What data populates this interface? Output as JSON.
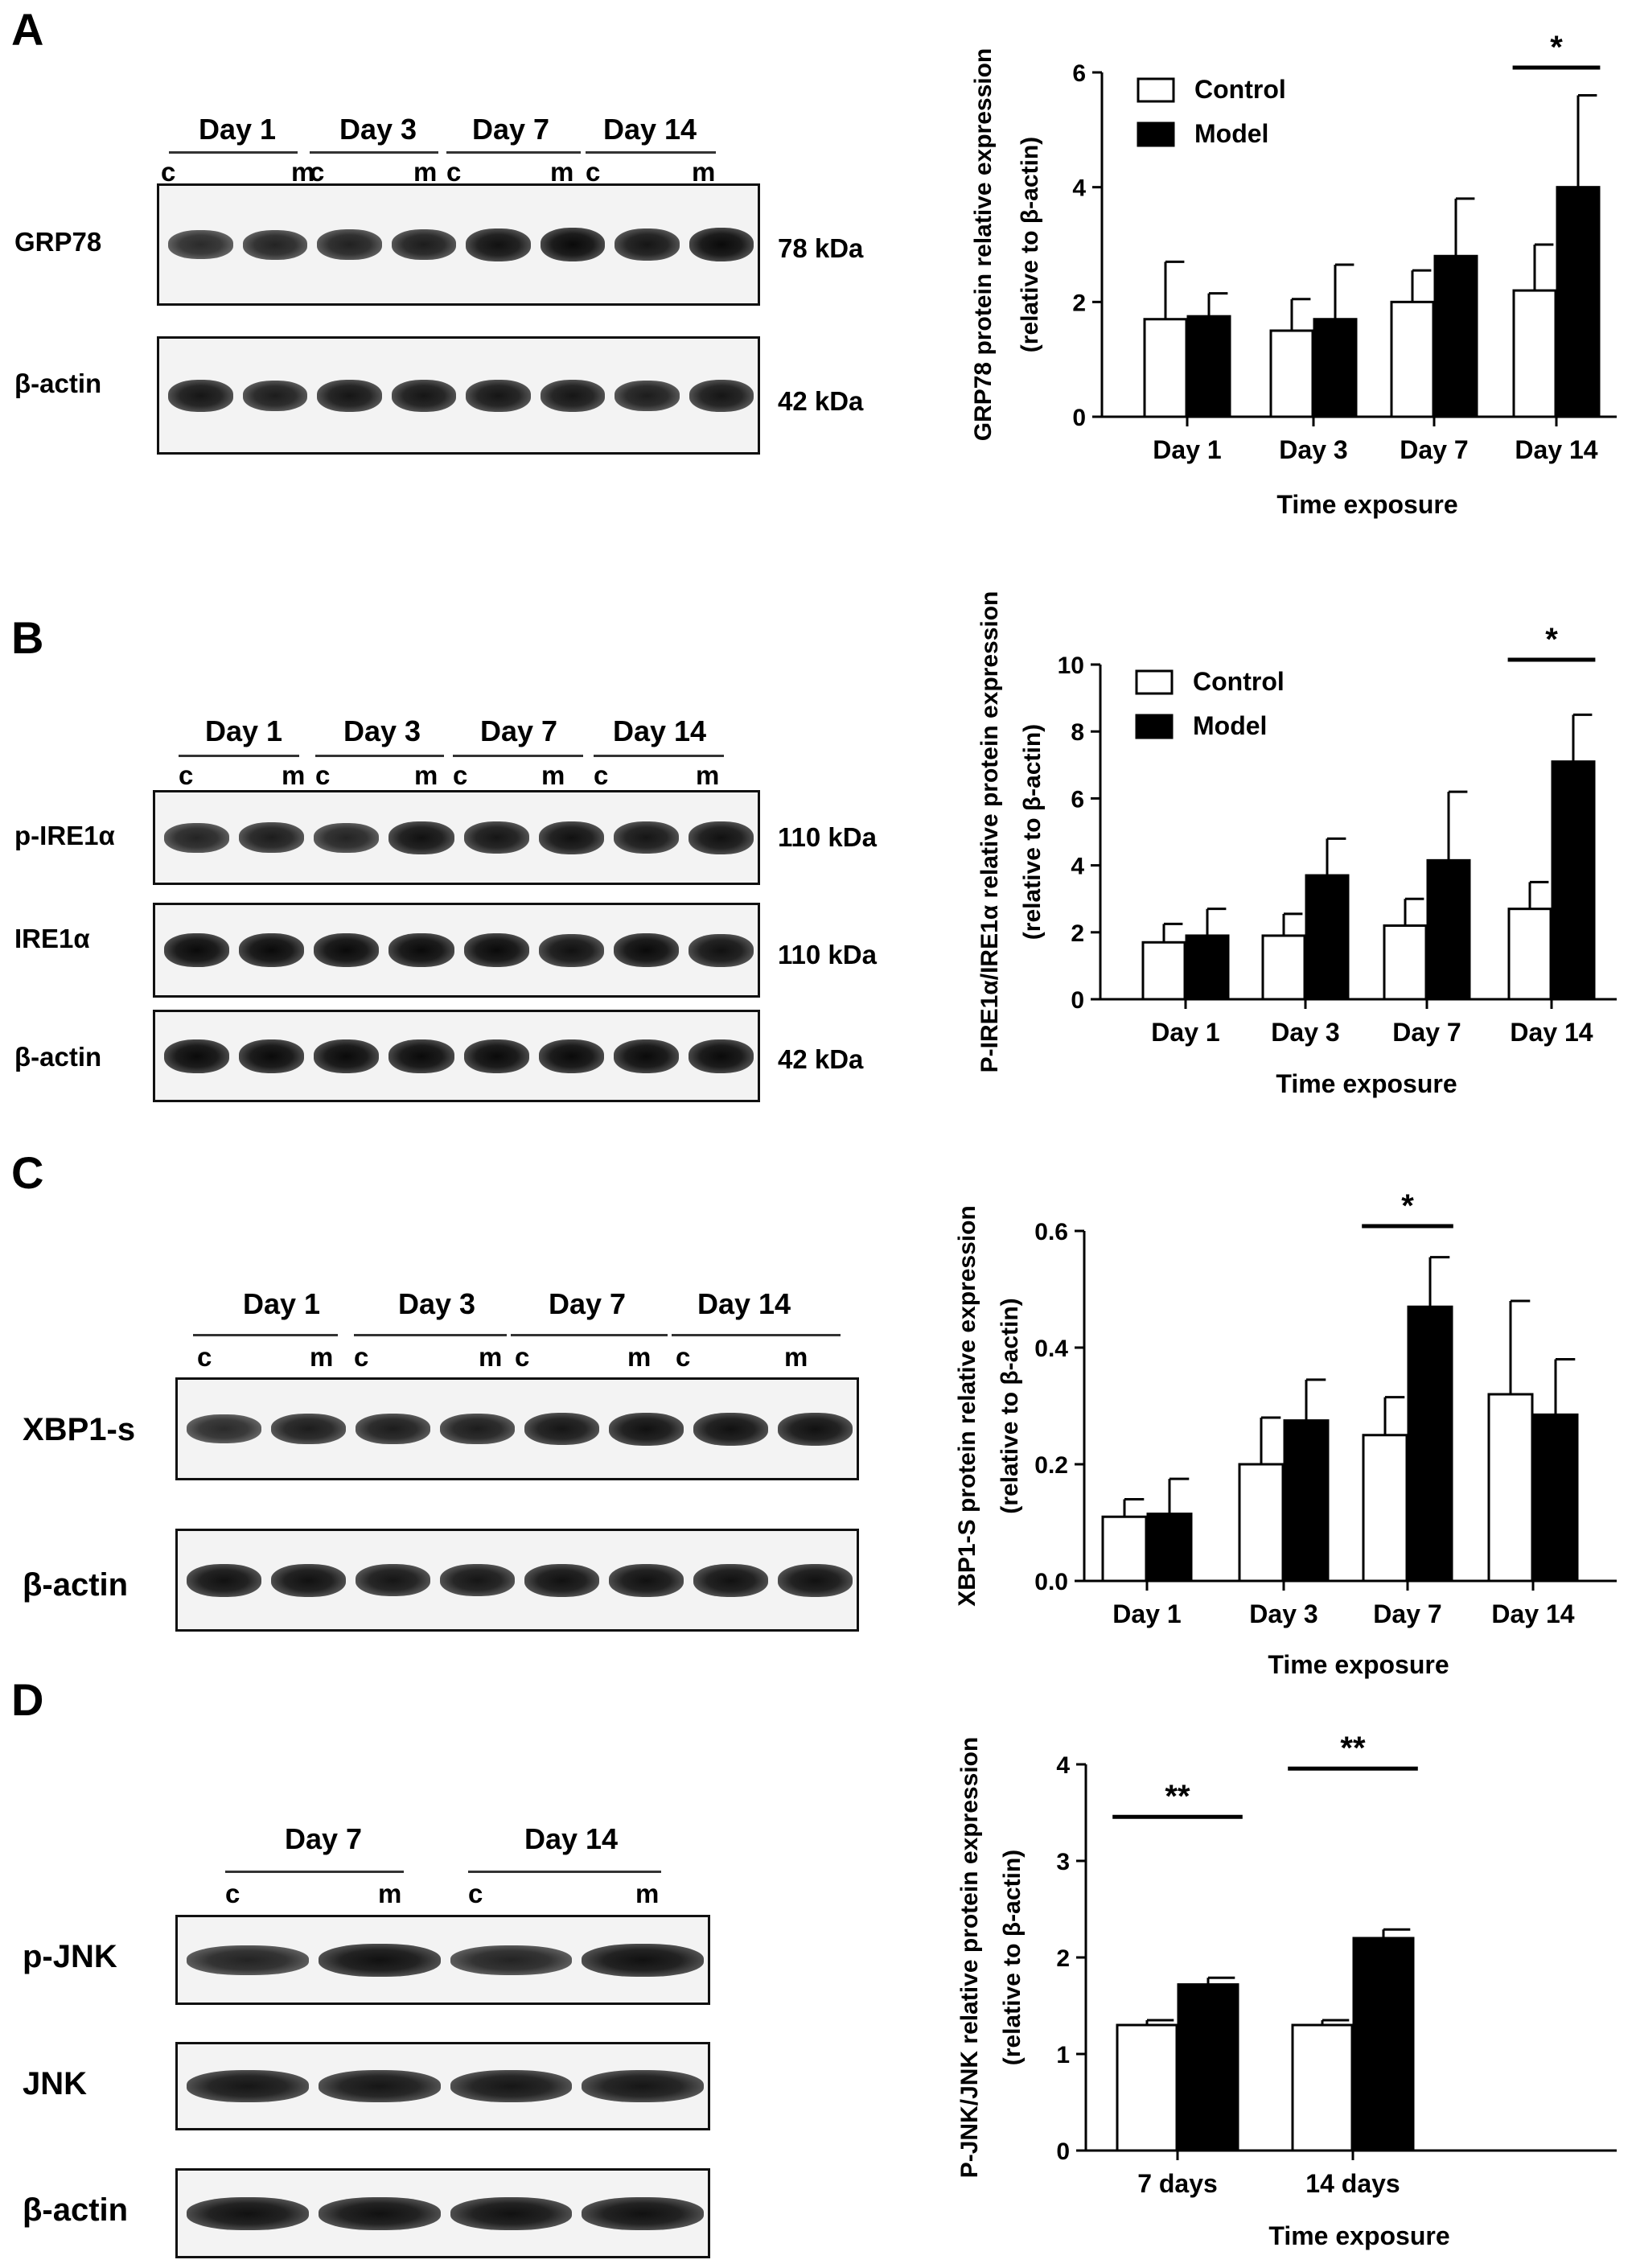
{
  "panels": [
    {
      "letter": "A",
      "days": [
        "Day 1",
        "Day 3",
        "Day 7",
        "Day 14"
      ],
      "group_c": "c",
      "group_m": "m",
      "blots": [
        {
          "label": "GRP78",
          "kda": "78 kDa",
          "intensity": [
            0.75,
            0.8,
            0.82,
            0.85,
            0.95,
            1.0,
            0.9,
            1.0
          ]
        },
        {
          "label": "β-actin",
          "kda": "42 kDa",
          "intensity": [
            0.9,
            0.85,
            0.9,
            0.9,
            0.9,
            0.9,
            0.85,
            0.9
          ]
        }
      ]
    },
    {
      "letter": "B",
      "days": [
        "Day 1",
        "Day 3",
        "Day 7",
        "Day 14"
      ],
      "group_c": "c",
      "group_m": "m",
      "blots": [
        {
          "label": "p-IRE1α",
          "kda": "110 kDa",
          "intensity": [
            0.8,
            0.85,
            0.8,
            0.95,
            0.9,
            0.95,
            0.9,
            0.95
          ]
        },
        {
          "label": "IRE1α",
          "kda": "110 kDa",
          "intensity": [
            1.0,
            1.0,
            1.0,
            1.0,
            1.0,
            0.95,
            1.0,
            0.95
          ]
        },
        {
          "label": "β-actin",
          "kda": "42 kDa",
          "intensity": [
            1.0,
            1.0,
            1.0,
            1.0,
            1.0,
            1.0,
            1.0,
            1.0
          ]
        }
      ]
    },
    {
      "letter": "C",
      "days": [
        "Day 1",
        "Day 3",
        "Day 7",
        "Day 14"
      ],
      "group_c": "c",
      "group_m": "m",
      "blots": [
        {
          "label": "XBP1-s",
          "kda": "",
          "intensity": [
            0.75,
            0.85,
            0.85,
            0.85,
            0.9,
            0.95,
            0.95,
            0.95
          ]
        },
        {
          "label": "β-actin",
          "kda": "",
          "intensity": [
            0.95,
            0.95,
            0.9,
            0.9,
            0.95,
            0.95,
            0.95,
            0.95
          ]
        }
      ]
    },
    {
      "letter": "D",
      "days": [
        "Day 7",
        "Day 14"
      ],
      "group_c": "c",
      "group_m": "m",
      "blots": [
        {
          "label": "p-JNK",
          "kda": "",
          "intensity": [
            0.8,
            0.95,
            0.8,
            0.95
          ]
        },
        {
          "label": "JNK",
          "kda": "",
          "intensity": [
            0.9,
            0.9,
            0.9,
            0.9
          ]
        },
        {
          "label": "β-actin",
          "kda": "",
          "intensity": [
            0.95,
            0.95,
            0.95,
            0.95
          ]
        }
      ]
    }
  ],
  "chart_data": [
    {
      "type": "bar",
      "categories": [
        "Day 1",
        "Day 3",
        "Day 7",
        "Day 14"
      ],
      "series": [
        {
          "name": "Control",
          "color": "#ffffff",
          "values": [
            1.7,
            1.5,
            2.0,
            2.2
          ],
          "errors": [
            1.0,
            0.55,
            0.55,
            0.8
          ]
        },
        {
          "name": "Model",
          "color": "#000000",
          "values": [
            1.75,
            1.7,
            2.8,
            4.0
          ],
          "errors": [
            0.4,
            0.95,
            1.0,
            1.6
          ]
        }
      ],
      "ylabel": "GRP78 protein relative expression (relative to β-actin)",
      "ylabel_lines": [
        "GRP78 protein relative expression",
        "(relative to β-actin)"
      ],
      "xlabel": "Time exposure",
      "ylim": [
        0,
        6
      ],
      "yticks": [
        "0",
        "2",
        "4",
        "6"
      ],
      "legend": "top-left",
      "significance": [
        {
          "category": "Day 14",
          "label": "*"
        }
      ]
    },
    {
      "type": "bar",
      "categories": [
        "Day 1",
        "Day 3",
        "Day 7",
        "Day 14"
      ],
      "series": [
        {
          "name": "Control",
          "color": "#ffffff",
          "values": [
            1.7,
            1.9,
            2.2,
            2.7
          ],
          "errors": [
            0.55,
            0.65,
            0.8,
            0.8
          ]
        },
        {
          "name": "Model",
          "color": "#000000",
          "values": [
            1.9,
            3.7,
            4.15,
            7.1
          ],
          "errors": [
            0.8,
            1.1,
            2.05,
            1.4
          ]
        }
      ],
      "ylabel": "P-IRE1α/IRE1α relative protein expression (relative to β-actin)",
      "ylabel_lines": [
        "P-IRE1α/IRE1α relative protein expression",
        "(relative to β-actin)"
      ],
      "xlabel": "Time exposure",
      "ylim": [
        0,
        10
      ],
      "yticks": [
        "0",
        "2",
        "4",
        "6",
        "8",
        "10"
      ],
      "legend": "top-left",
      "significance": [
        {
          "category": "Day 14",
          "label": "*"
        }
      ]
    },
    {
      "type": "bar",
      "categories": [
        "Day 1",
        "Day 3",
        "Day 7",
        "Day 14"
      ],
      "series": [
        {
          "name": "Control",
          "color": "#ffffff",
          "values": [
            0.11,
            0.2,
            0.25,
            0.32
          ],
          "errors": [
            0.03,
            0.08,
            0.065,
            0.16
          ]
        },
        {
          "name": "Model",
          "color": "#000000",
          "values": [
            0.115,
            0.275,
            0.47,
            0.285
          ],
          "errors": [
            0.06,
            0.07,
            0.085,
            0.095
          ]
        }
      ],
      "ylabel": "XBP1-S protein relative  expression (relative to β-actin)",
      "ylabel_lines": [
        "XBP1-S protein relative  expression",
        "(relative to β-actin)"
      ],
      "xlabel": "Time exposure",
      "ylim": [
        0,
        0.6
      ],
      "yticks": [
        "0.0",
        "0.2",
        "0.4",
        "0.6"
      ],
      "legend": "",
      "significance": [
        {
          "category": "Day 7",
          "label": "*"
        }
      ]
    },
    {
      "type": "bar",
      "categories": [
        "7 days",
        "14 days"
      ],
      "series": [
        {
          "name": "Control",
          "color": "#ffffff",
          "values": [
            1.3,
            1.3
          ],
          "errors": [
            0.05,
            0.05
          ]
        },
        {
          "name": "Model",
          "color": "#000000",
          "values": [
            1.72,
            2.2
          ],
          "errors": [
            0.07,
            0.09
          ]
        }
      ],
      "ylabel": "P-JNK/JNK relative protein expression (relative to β-actin)",
      "ylabel_lines": [
        "P-JNK/JNK  relative protein expression",
        "(relative to β-actin)"
      ],
      "xlabel": "Time exposure",
      "ylim": [
        0,
        4
      ],
      "yticks": [
        "0",
        "1",
        "2",
        "3",
        "4"
      ],
      "legend": "",
      "significance": [
        {
          "category": "7 days",
          "label": "**"
        },
        {
          "category": "14 days",
          "label": "**"
        }
      ]
    }
  ]
}
